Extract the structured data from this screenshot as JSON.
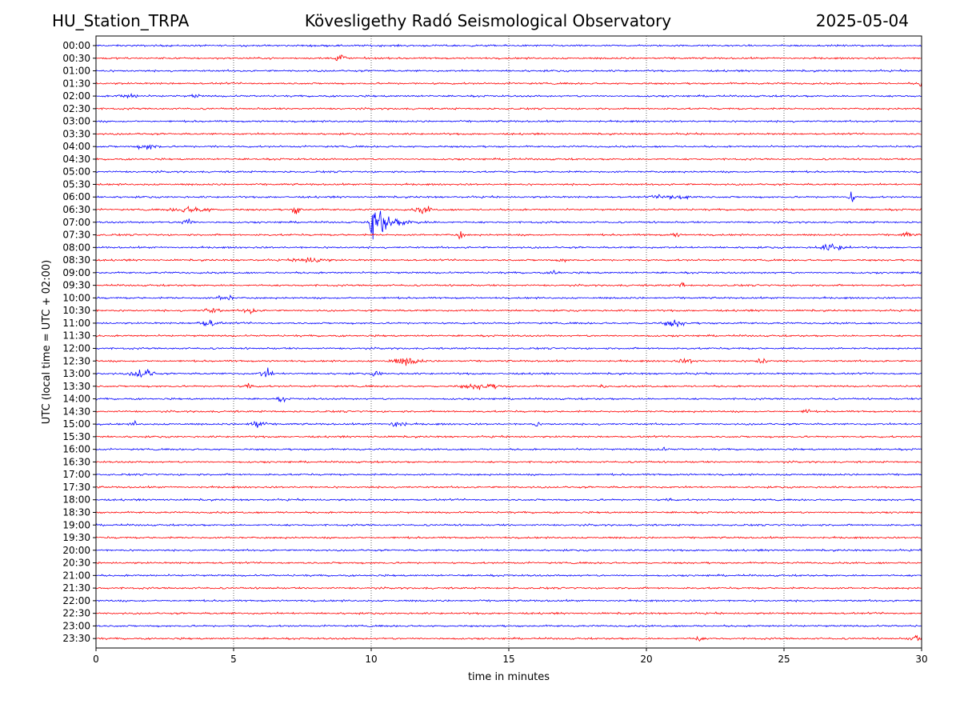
{
  "header": {
    "station": "HU_Station_TRPA",
    "observatory": "Kövesligethy Radó Seismological Observatory",
    "date": "2025-05-04"
  },
  "chart_data": {
    "type": "line",
    "xlabel": "time in minutes",
    "ylabel": "UTC (local time = UTC + 02:00)",
    "xlim": [
      0,
      30
    ],
    "x_ticks": [
      0,
      5,
      10,
      15,
      20,
      25,
      30
    ],
    "x_grid": true,
    "row_labels": [
      "00:00",
      "00:30",
      "01:00",
      "01:30",
      "02:00",
      "02:30",
      "03:00",
      "03:30",
      "04:00",
      "04:30",
      "05:00",
      "05:30",
      "06:00",
      "06:30",
      "07:00",
      "07:30",
      "08:00",
      "08:30",
      "09:00",
      "09:30",
      "10:00",
      "10:30",
      "11:00",
      "11:30",
      "12:00",
      "12:30",
      "13:00",
      "13:30",
      "14:00",
      "14:30",
      "15:00",
      "15:30",
      "16:00",
      "16:30",
      "17:00",
      "17:30",
      "18:00",
      "18:30",
      "19:00",
      "19:30",
      "20:00",
      "20:30",
      "21:00",
      "21:30",
      "22:00",
      "22:30",
      "23:00",
      "23:30"
    ],
    "colors": [
      "#0000ff",
      "#ff0000"
    ],
    "events": [
      {
        "row": "00:30",
        "minute": 8.7,
        "amplitude": 0.8,
        "duration": 0.4
      },
      {
        "row": "01:30",
        "minute": 29.9,
        "amplitude": 0.4,
        "duration": 0.2
      },
      {
        "row": "02:00",
        "minute": 0.6,
        "amplitude": 0.2,
        "duration": 1.2
      },
      {
        "row": "02:00",
        "minute": 3.4,
        "amplitude": 0.2,
        "duration": 0.4
      },
      {
        "row": "04:00",
        "minute": 1.4,
        "amplitude": 0.35,
        "duration": 1.0
      },
      {
        "row": "04:00",
        "minute": 4.3,
        "amplitude": 0.2,
        "duration": 0.2
      },
      {
        "row": "06:00",
        "minute": 20.0,
        "amplitude": 0.25,
        "duration": 2.0
      },
      {
        "row": "06:00",
        "minute": 27.3,
        "amplitude": 0.6,
        "duration": 0.3
      },
      {
        "row": "06:30",
        "minute": 2.5,
        "amplitude": 0.3,
        "duration": 2.0
      },
      {
        "row": "06:30",
        "minute": 7.1,
        "amplitude": 0.5,
        "duration": 0.4
      },
      {
        "row": "06:30",
        "minute": 11.5,
        "amplitude": 0.4,
        "duration": 0.8
      },
      {
        "row": "07:00",
        "minute": 3.0,
        "amplitude": 0.45,
        "duration": 0.6
      },
      {
        "row": "07:00",
        "minute": 10.0,
        "amplitude": 2.5,
        "duration": 2.8
      },
      {
        "row": "07:30",
        "minute": 13.1,
        "amplitude": 0.4,
        "duration": 0.3
      },
      {
        "row": "07:30",
        "minute": 20.9,
        "amplitude": 0.3,
        "duration": 0.3
      },
      {
        "row": "07:30",
        "minute": 29.2,
        "amplitude": 0.3,
        "duration": 0.5
      },
      {
        "row": "08:00",
        "minute": 26.0,
        "amplitude": 0.35,
        "duration": 1.5
      },
      {
        "row": "08:30",
        "minute": 7.0,
        "amplitude": 0.3,
        "duration": 1.6
      },
      {
        "row": "08:30",
        "minute": 16.8,
        "amplitude": 0.3,
        "duration": 0.3
      },
      {
        "row": "09:00",
        "minute": 16.5,
        "amplitude": 0.35,
        "duration": 0.4
      },
      {
        "row": "09:30",
        "minute": 21.2,
        "amplitude": 0.35,
        "duration": 0.2
      },
      {
        "row": "10:00",
        "minute": 4.4,
        "amplitude": 0.45,
        "duration": 0.6
      },
      {
        "row": "10:30",
        "minute": 3.8,
        "amplitude": 0.3,
        "duration": 0.8
      },
      {
        "row": "10:30",
        "minute": 5.3,
        "amplitude": 0.35,
        "duration": 0.6
      },
      {
        "row": "11:00",
        "minute": 3.6,
        "amplitude": 0.35,
        "duration": 1.0
      },
      {
        "row": "11:00",
        "minute": 20.5,
        "amplitude": 0.4,
        "duration": 1.0
      },
      {
        "row": "12:30",
        "minute": 10.5,
        "amplitude": 0.4,
        "duration": 1.5
      },
      {
        "row": "12:30",
        "minute": 24.0,
        "amplitude": 0.45,
        "duration": 0.4
      },
      {
        "row": "12:30",
        "minute": 21.0,
        "amplitude": 0.2,
        "duration": 1.0
      },
      {
        "row": "13:00",
        "minute": 1.2,
        "amplitude": 0.6,
        "duration": 1.0
      },
      {
        "row": "13:00",
        "minute": 5.9,
        "amplitude": 0.5,
        "duration": 0.6
      },
      {
        "row": "13:00",
        "minute": 10.0,
        "amplitude": 0.3,
        "duration": 0.4
      },
      {
        "row": "13:30",
        "minute": 5.4,
        "amplitude": 0.4,
        "duration": 0.3
      },
      {
        "row": "13:30",
        "minute": 13.0,
        "amplitude": 0.3,
        "duration": 2.0
      },
      {
        "row": "13:30",
        "minute": 18.3,
        "amplitude": 0.3,
        "duration": 0.2
      },
      {
        "row": "14:00",
        "minute": 6.6,
        "amplitude": 0.35,
        "duration": 0.3
      },
      {
        "row": "14:30",
        "minute": 25.7,
        "amplitude": 0.35,
        "duration": 0.3
      },
      {
        "row": "15:00",
        "minute": 1.3,
        "amplitude": 0.35,
        "duration": 0.2
      },
      {
        "row": "15:00",
        "minute": 5.5,
        "amplitude": 0.55,
        "duration": 0.7
      },
      {
        "row": "15:00",
        "minute": 10.6,
        "amplitude": 0.5,
        "duration": 0.7
      },
      {
        "row": "15:00",
        "minute": 15.9,
        "amplitude": 0.35,
        "duration": 0.2
      },
      {
        "row": "16:00",
        "minute": 20.3,
        "amplitude": 0.2,
        "duration": 0.5
      },
      {
        "row": "18:00",
        "minute": 20.7,
        "amplitude": 0.25,
        "duration": 0.3
      },
      {
        "row": "23:30",
        "minute": 21.7,
        "amplitude": 0.3,
        "duration": 0.4
      },
      {
        "row": "23:30",
        "minute": 29.5,
        "amplitude": 0.35,
        "duration": 0.5
      }
    ]
  }
}
